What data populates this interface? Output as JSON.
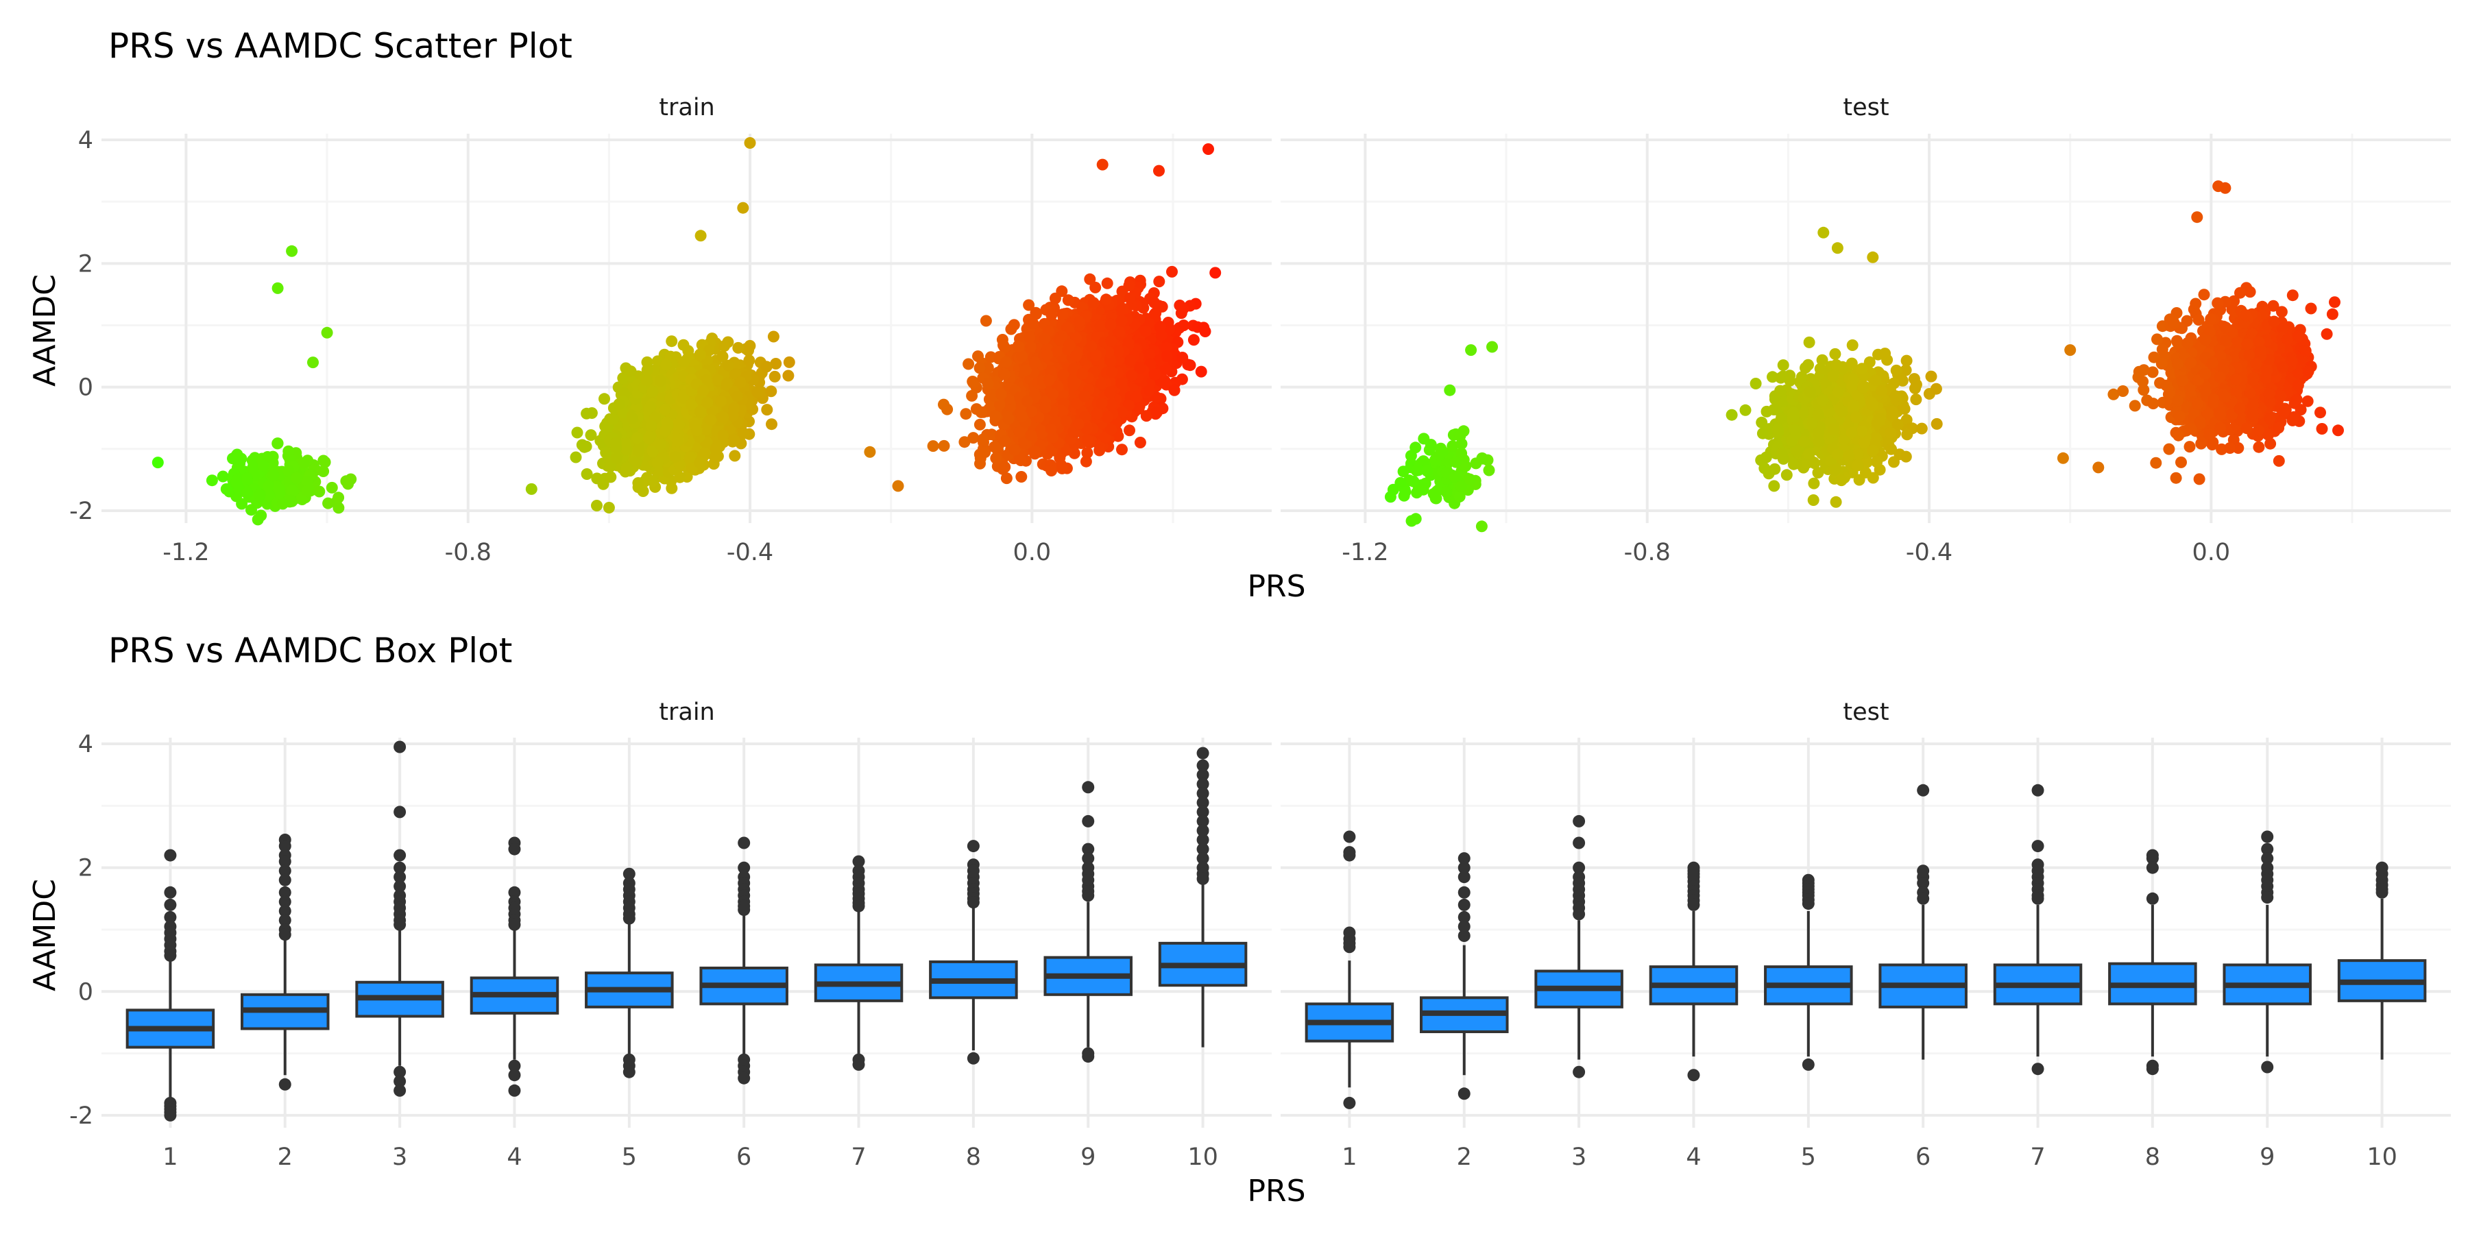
{
  "colors": {
    "grid_major": "#ebebeb",
    "grid_minor": "#f5f5f5",
    "box_fill": "#1e90ff",
    "box_line": "#333333",
    "gradient_low": "#44ff00",
    "gradient_mid": "#c8b800",
    "gradient_high": "#ff1a00"
  },
  "chart_data": [
    {
      "type": "scatter",
      "title": "PRS vs AAMDC Scatter Plot",
      "xlabel": "PRS",
      "ylabel": "AAMDC",
      "xlim": [
        -1.32,
        0.34
      ],
      "ylim": [
        -2.2,
        4.1
      ],
      "x_ticks": [
        -1.2,
        -0.8,
        -0.4,
        0.0
      ],
      "x_tick_labels": [
        "-1.2",
        "-0.8",
        "-0.4",
        "0.0"
      ],
      "y_ticks": [
        -2,
        0,
        2,
        4
      ],
      "y_tick_labels": [
        "-2",
        "0",
        "2",
        "4"
      ],
      "color_scale": "green-yellow-red by PRS",
      "grid": true,
      "panels": [
        {
          "name": "train",
          "clusters": [
            {
              "x_center": -1.07,
              "x_sd": 0.035,
              "y_center": -1.5,
              "y_sd": 0.22,
              "r": 0.1,
              "n": 240
            },
            {
              "x_center": -0.5,
              "x_sd": 0.045,
              "y_center": -0.45,
              "y_sd": 0.4,
              "r": 0.35,
              "n": 2200
            },
            {
              "x_center": 0.06,
              "x_sd": 0.055,
              "y_center": 0.15,
              "y_sd": 0.52,
              "r": 0.4,
              "n": 3300
            }
          ],
          "outliers": [
            {
              "x": -1.24,
              "y": -1.22
            },
            {
              "x": -1.05,
              "y": 2.2
            },
            {
              "x": -1.07,
              "y": 1.6
            },
            {
              "x": -1.0,
              "y": 0.88
            },
            {
              "x": -1.02,
              "y": 0.4
            },
            {
              "x": -0.4,
              "y": 3.95
            },
            {
              "x": -0.41,
              "y": 2.9
            },
            {
              "x": -0.47,
              "y": 2.45
            },
            {
              "x": -0.71,
              "y": -1.65
            },
            {
              "x": -0.6,
              "y": -1.95
            },
            {
              "x": 0.25,
              "y": 3.85
            },
            {
              "x": 0.26,
              "y": 1.85
            },
            {
              "x": 0.24,
              "y": 0.25
            },
            {
              "x": -0.23,
              "y": -1.05
            },
            {
              "x": -0.19,
              "y": -1.6
            },
            {
              "x": 0.1,
              "y": 3.6
            },
            {
              "x": 0.18,
              "y": 3.5
            }
          ]
        },
        {
          "name": "test",
          "clusters": [
            {
              "x_center": -1.09,
              "x_sd": 0.03,
              "y_center": -1.35,
              "y_sd": 0.28,
              "r": 0.2,
              "n": 110
            },
            {
              "x_center": -0.53,
              "x_sd": 0.045,
              "y_center": -0.5,
              "y_sd": 0.4,
              "r": 0.15,
              "n": 950
            },
            {
              "x_center": 0.03,
              "x_sd": 0.045,
              "y_center": 0.2,
              "y_sd": 0.45,
              "r": 0.15,
              "n": 1400
            }
          ],
          "outliers": [
            {
              "x": -1.05,
              "y": 0.6
            },
            {
              "x": -1.02,
              "y": 0.65
            },
            {
              "x": -1.08,
              "y": -0.05
            },
            {
              "x": -1.15,
              "y": -1.55
            },
            {
              "x": -0.55,
              "y": 2.5
            },
            {
              "x": -0.53,
              "y": 2.25
            },
            {
              "x": -0.48,
              "y": 2.1
            },
            {
              "x": -0.68,
              "y": -0.45
            },
            {
              "x": -0.62,
              "y": -1.6
            },
            {
              "x": -0.42,
              "y": -0.02
            },
            {
              "x": 0.01,
              "y": 3.25
            },
            {
              "x": 0.02,
              "y": 3.22
            },
            {
              "x": -0.02,
              "y": 2.75
            },
            {
              "x": -0.2,
              "y": 0.6
            },
            {
              "x": -0.21,
              "y": -1.15
            },
            {
              "x": -0.16,
              "y": -1.3
            },
            {
              "x": 0.18,
              "y": -0.7
            }
          ]
        }
      ]
    },
    {
      "type": "box",
      "title": "PRS vs AAMDC Box Plot",
      "xlabel": "PRS",
      "ylabel": "AAMDC",
      "categories": [
        "1",
        "2",
        "3",
        "4",
        "5",
        "6",
        "7",
        "8",
        "9",
        "10"
      ],
      "ylim": [
        -2.2,
        4.1
      ],
      "y_ticks": [
        -2,
        0,
        2,
        4
      ],
      "y_tick_labels": [
        "-2",
        "0",
        "2",
        "4"
      ],
      "grid": true,
      "panels": [
        {
          "name": "train",
          "boxes": [
            {
              "q1": -0.9,
              "median": -0.6,
              "q3": -0.3,
              "lo": -1.75,
              "hi": 0.5,
              "outliers": [
                2.2,
                1.6,
                1.4,
                1.2,
                1.05,
                0.95,
                0.85,
                0.75,
                0.65,
                0.58,
                -1.8,
                -1.85,
                -1.9,
                -1.95,
                -2.0
              ]
            },
            {
              "q1": -0.6,
              "median": -0.3,
              "q3": -0.05,
              "lo": -1.35,
              "hi": 0.85,
              "outliers": [
                2.45,
                2.35,
                2.2,
                2.1,
                1.95,
                1.8,
                1.6,
                1.45,
                1.3,
                1.15,
                1.0,
                0.92,
                -1.5
              ]
            },
            {
              "q1": -0.4,
              "median": -0.1,
              "q3": 0.15,
              "lo": -1.2,
              "hi": 1.0,
              "outliers": [
                3.95,
                2.9,
                2.2,
                2.0,
                1.85,
                1.7,
                1.55,
                1.45,
                1.35,
                1.25,
                1.15,
                1.08,
                -1.3,
                -1.45,
                -1.6
              ]
            },
            {
              "q1": -0.35,
              "median": -0.05,
              "q3": 0.22,
              "lo": -1.1,
              "hi": 1.0,
              "outliers": [
                2.4,
                2.3,
                1.6,
                1.45,
                1.35,
                1.25,
                1.15,
                1.08,
                -1.2,
                -1.35,
                -1.6
              ]
            },
            {
              "q1": -0.25,
              "median": 0.03,
              "q3": 0.3,
              "lo": -1.05,
              "hi": 1.1,
              "outliers": [
                1.9,
                1.75,
                1.65,
                1.55,
                1.45,
                1.35,
                1.25,
                1.18,
                -1.1,
                -1.2,
                -1.3
              ]
            },
            {
              "q1": -0.2,
              "median": 0.1,
              "q3": 0.38,
              "lo": -1.05,
              "hi": 1.25,
              "outliers": [
                2.4,
                2.0,
                1.85,
                1.75,
                1.65,
                1.55,
                1.45,
                1.38,
                1.32,
                -1.1,
                -1.2,
                -1.3,
                -1.4
              ]
            },
            {
              "q1": -0.15,
              "median": 0.12,
              "q3": 0.43,
              "lo": -1.05,
              "hi": 1.3,
              "outliers": [
                2.1,
                1.95,
                1.85,
                1.75,
                1.65,
                1.58,
                1.5,
                1.43,
                1.38,
                -1.1,
                -1.18
              ]
            },
            {
              "q1": -0.1,
              "median": 0.17,
              "q3": 0.48,
              "lo": -0.95,
              "hi": 1.35,
              "outliers": [
                2.35,
                2.05,
                1.95,
                1.85,
                1.75,
                1.65,
                1.58,
                1.5,
                1.44,
                -1.08
              ]
            },
            {
              "q1": -0.05,
              "median": 0.25,
              "q3": 0.55,
              "lo": -0.9,
              "hi": 1.45,
              "outliers": [
                3.3,
                2.75,
                2.3,
                2.15,
                2.0,
                1.9,
                1.8,
                1.7,
                1.62,
                1.55,
                -1.0,
                -1.05
              ]
            },
            {
              "q1": 0.1,
              "median": 0.42,
              "q3": 0.78,
              "lo": -0.9,
              "hi": 1.75,
              "outliers": [
                3.85,
                3.65,
                3.5,
                3.35,
                3.2,
                3.05,
                2.9,
                2.75,
                2.6,
                2.45,
                2.3,
                2.15,
                2.0,
                1.9,
                1.82
              ]
            }
          ]
        },
        {
          "name": "test",
          "boxes": [
            {
              "q1": -0.8,
              "median": -0.5,
              "q3": -0.2,
              "lo": -1.55,
              "hi": 0.5,
              "outliers": [
                2.5,
                2.25,
                2.2,
                0.95,
                0.85,
                0.78,
                0.72,
                -1.8
              ]
            },
            {
              "q1": -0.65,
              "median": -0.35,
              "q3": -0.1,
              "lo": -1.35,
              "hi": 0.75,
              "outliers": [
                2.15,
                2.0,
                1.85,
                1.6,
                1.4,
                1.2,
                1.05,
                0.9,
                -1.65
              ]
            },
            {
              "q1": -0.25,
              "median": 0.05,
              "q3": 0.33,
              "lo": -1.1,
              "hi": 1.15,
              "outliers": [
                2.75,
                2.4,
                2.0,
                1.85,
                1.75,
                1.65,
                1.55,
                1.45,
                1.35,
                1.25,
                -1.3
              ]
            },
            {
              "q1": -0.2,
              "median": 0.1,
              "q3": 0.4,
              "lo": -1.05,
              "hi": 1.3,
              "outliers": [
                2.0,
                1.95,
                1.9,
                1.85,
                1.78,
                1.7,
                1.62,
                1.55,
                1.47,
                1.4,
                -1.35
              ]
            },
            {
              "q1": -0.2,
              "median": 0.1,
              "q3": 0.4,
              "lo": -1.05,
              "hi": 1.3,
              "outliers": [
                1.8,
                1.75,
                1.7,
                1.65,
                1.6,
                1.55,
                1.48,
                1.42,
                -1.18
              ]
            },
            {
              "q1": -0.25,
              "median": 0.1,
              "q3": 0.43,
              "lo": -1.1,
              "hi": 1.4,
              "outliers": [
                3.25,
                1.95,
                1.85,
                1.75,
                1.6,
                1.5
              ]
            },
            {
              "q1": -0.2,
              "median": 0.1,
              "q3": 0.43,
              "lo": -1.05,
              "hi": 1.4,
              "outliers": [
                3.25,
                2.35,
                2.05,
                1.95,
                1.85,
                1.75,
                1.65,
                1.55,
                1.5,
                -1.25
              ]
            },
            {
              "q1": -0.2,
              "median": 0.1,
              "q3": 0.45,
              "lo": -1.05,
              "hi": 1.4,
              "outliers": [
                2.2,
                2.15,
                2.0,
                1.5,
                -1.2,
                -1.25
              ]
            },
            {
              "q1": -0.2,
              "median": 0.1,
              "q3": 0.43,
              "lo": -1.05,
              "hi": 1.4,
              "outliers": [
                2.5,
                2.3,
                2.15,
                2.0,
                1.9,
                1.8,
                1.7,
                1.6,
                1.52,
                -1.22
              ]
            },
            {
              "q1": -0.15,
              "median": 0.15,
              "q3": 0.5,
              "lo": -1.1,
              "hi": 1.5,
              "outliers": [
                2.0,
                1.9,
                1.8,
                1.72,
                1.65,
                1.6
              ]
            }
          ]
        }
      ]
    }
  ]
}
